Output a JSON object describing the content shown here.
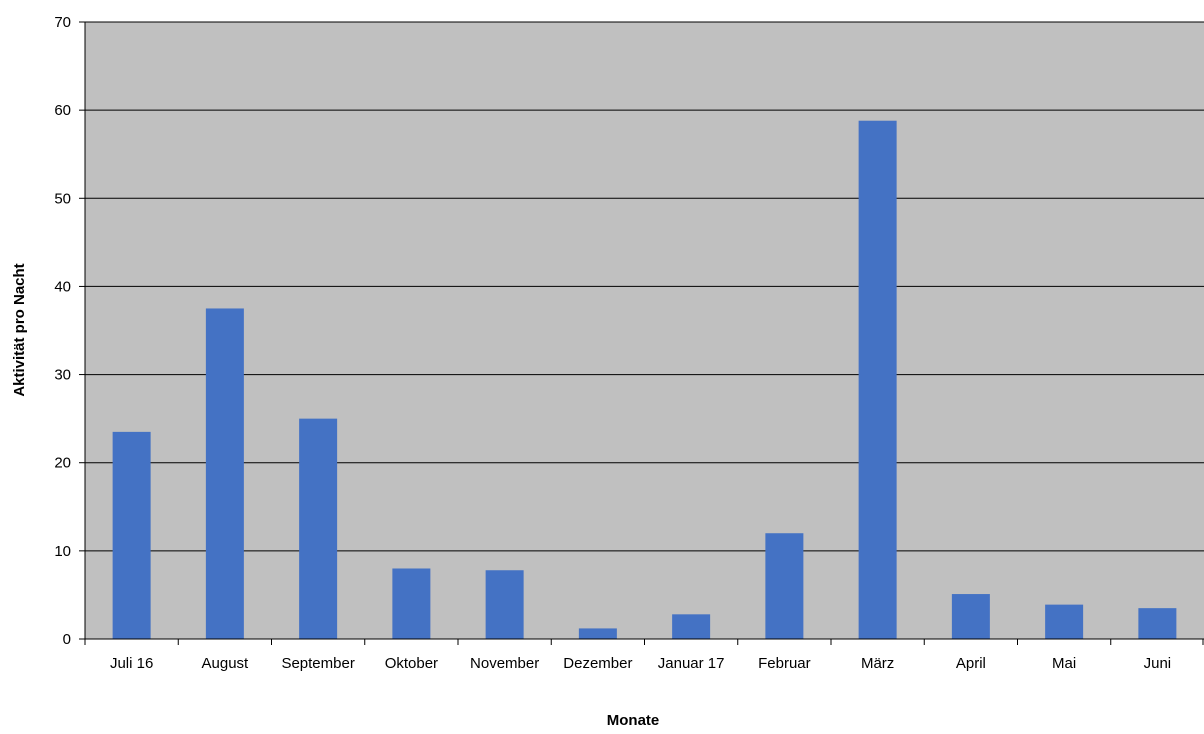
{
  "chart_data": {
    "type": "bar",
    "title": "",
    "xlabel": "Monate",
    "ylabel": "Aktivität pro Nacht",
    "categories": [
      "Juli 16",
      "August",
      "September",
      "Oktober",
      "November",
      "Dezember",
      "Januar 17",
      "Februar",
      "März",
      "April",
      "Mai",
      "Juni"
    ],
    "series": [
      {
        "values": [
          23.5,
          37.5,
          25.0,
          8.0,
          7.8,
          1.2,
          2.8,
          12.0,
          58.8,
          5.1,
          3.9,
          3.5
        ]
      }
    ],
    "ylim": [
      0,
      70
    ],
    "yticks": [
      0,
      10,
      20,
      30,
      40,
      50,
      60,
      70
    ],
    "grid": true,
    "colors": {
      "bar": "#4472C4",
      "plot_background": "#C0C0C0",
      "gridline": "#000000",
      "axis": "#000000"
    }
  }
}
